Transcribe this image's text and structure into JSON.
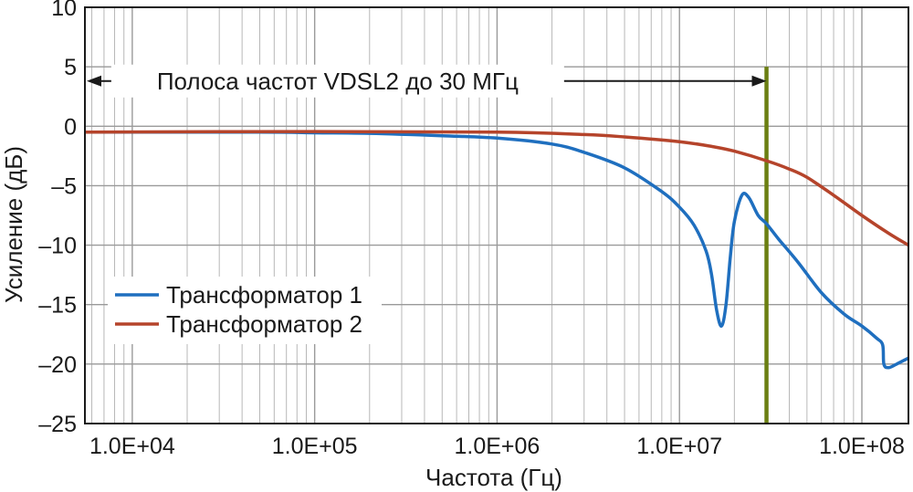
{
  "chart_data": {
    "type": "line",
    "xlabel": "Частота (Гц)",
    "ylabel": "Усиление (дБ)",
    "xscale": "log",
    "xlim": [
      5500,
      180000000
    ],
    "ylim": [
      -25,
      10
    ],
    "grid": true,
    "x_ticks": [
      10000,
      100000,
      1000000,
      10000000,
      100000000
    ],
    "x_tick_labels": [
      "1.0E+04",
      "1.0E+05",
      "1.0E+06",
      "1.0E+07",
      "1.0E+08"
    ],
    "y_ticks": [
      10,
      5,
      0,
      -5,
      -10,
      -15,
      -20,
      -25
    ],
    "y_tick_labels": [
      "10",
      "5",
      "0",
      "–5",
      "–10",
      "–15",
      "–20",
      "–25"
    ],
    "legend": {
      "placement": "lower-left",
      "entries": [
        {
          "label": "Трансформатор 1",
          "color": "#1f6fbf"
        },
        {
          "label": "Трансформатор 2",
          "color": "#b5442b"
        }
      ]
    },
    "annotations": [
      {
        "text": "Полоса частот VDSL2 до 30 МГц",
        "x_from": 5500,
        "x_to": 30000000,
        "y": 3.8
      }
    ],
    "vertical_lines": [
      {
        "x": 30000000,
        "y_from": -25,
        "y_to": 5,
        "color": "#6b7f12"
      }
    ],
    "series": [
      {
        "name": "Трансформатор 1",
        "color": "#1f6fbf",
        "points": [
          [
            5500,
            -0.5
          ],
          [
            10000,
            -0.5
          ],
          [
            50000,
            -0.5
          ],
          [
            100000,
            -0.55
          ],
          [
            200000,
            -0.6
          ],
          [
            500000,
            -0.8
          ],
          [
            1000000,
            -1.0
          ],
          [
            2000000,
            -1.5
          ],
          [
            3000000,
            -2.2
          ],
          [
            5000000,
            -3.5
          ],
          [
            8000000,
            -5.5
          ],
          [
            10000000,
            -6.8
          ],
          [
            12000000,
            -8.3
          ],
          [
            14000000,
            -10.5
          ],
          [
            15000000,
            -12.5
          ],
          [
            16000000,
            -15.5
          ],
          [
            17000000,
            -16.8
          ],
          [
            18000000,
            -15.0
          ],
          [
            19000000,
            -11.0
          ],
          [
            20000000,
            -8.0
          ],
          [
            22000000,
            -5.8
          ],
          [
            24000000,
            -6.0
          ],
          [
            27000000,
            -7.5
          ],
          [
            30000000,
            -8.2
          ],
          [
            35000000,
            -9.5
          ],
          [
            45000000,
            -11.5
          ],
          [
            60000000,
            -14.0
          ],
          [
            80000000,
            -15.8
          ],
          [
            100000000,
            -16.8
          ],
          [
            120000000,
            -17.8
          ],
          [
            130000000,
            -18.4
          ],
          [
            132000000,
            -20.0
          ],
          [
            140000000,
            -20.3
          ],
          [
            155000000,
            -20.0
          ],
          [
            180000000,
            -19.5
          ]
        ]
      },
      {
        "name": "Трансформатор 2",
        "color": "#b5442b",
        "points": [
          [
            5500,
            -0.5
          ],
          [
            100000,
            -0.45
          ],
          [
            1000000,
            -0.5
          ],
          [
            3000000,
            -0.7
          ],
          [
            5000000,
            -0.9
          ],
          [
            10000000,
            -1.3
          ],
          [
            15000000,
            -1.7
          ],
          [
            20000000,
            -2.1
          ],
          [
            30000000,
            -2.9
          ],
          [
            40000000,
            -3.6
          ],
          [
            50000000,
            -4.3
          ],
          [
            70000000,
            -5.8
          ],
          [
            100000000,
            -7.5
          ],
          [
            140000000,
            -9.0
          ],
          [
            180000000,
            -10.0
          ]
        ]
      }
    ]
  }
}
